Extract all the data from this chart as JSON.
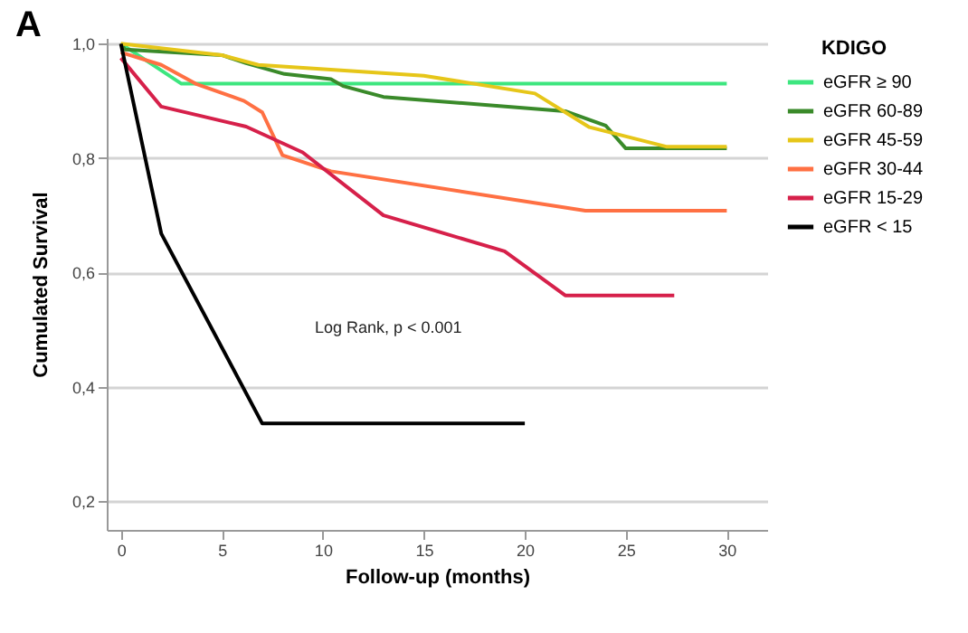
{
  "chart_data": {
    "type": "line",
    "title": "A",
    "xlabel": "Follow-up (months)",
    "ylabel": "Cumulated Survival",
    "legend_title": "KDIGO",
    "xlim": [
      -0.7,
      32
    ],
    "xticks": [
      0,
      5,
      10,
      15,
      20,
      25,
      30
    ],
    "ylim": [
      0.15,
      1.01
    ],
    "yticks": [
      {
        "value": 0.2,
        "label": "0,2"
      },
      {
        "value": 0.4,
        "label": "0,4"
      },
      {
        "value": 0.6,
        "label": "0,6"
      },
      {
        "value": 0.8,
        "label": "0,8"
      },
      {
        "value": 1.0,
        "label": "1,0"
      }
    ],
    "grid": "y",
    "legend": "top right",
    "marker": "none",
    "line_style": "solid",
    "annotations": [
      "Log Rank, p < 0.001"
    ],
    "series": [
      {
        "name": "eGFR ≥ 90",
        "color": "#3de67f",
        "x": [
          0,
          3,
          30
        ],
        "values": [
          1.0,
          0.93,
          0.93
        ]
      },
      {
        "name": "eGFR 60-89",
        "color": "#3a8a2a",
        "x": [
          0,
          0.2,
          5,
          6.2,
          8.1,
          10.4,
          11,
          13,
          22,
          24,
          25,
          30
        ],
        "values": [
          1.0,
          0.99,
          0.98,
          0.966,
          0.947,
          0.938,
          0.926,
          0.907,
          0.882,
          0.857,
          0.817,
          0.817
        ]
      },
      {
        "name": "eGFR 45-59",
        "color": "#e6c619",
        "x": [
          0,
          5,
          6.8,
          15,
          20.5,
          23.2,
          27,
          30
        ],
        "values": [
          1.0,
          0.98,
          0.963,
          0.944,
          0.913,
          0.854,
          0.82,
          0.82
        ]
      },
      {
        "name": "eGFR 30-44",
        "color": "#ff7043",
        "x": [
          0,
          2,
          3.7,
          6.1,
          7,
          8,
          10.4,
          23,
          30
        ],
        "values": [
          0.985,
          0.963,
          0.93,
          0.9,
          0.88,
          0.805,
          0.777,
          0.708,
          0.708
        ]
      },
      {
        "name": "eGFR 15-29",
        "color": "#d6204a",
        "x": [
          0,
          2,
          6.2,
          9,
          13,
          19,
          22,
          27.4
        ],
        "values": [
          0.975,
          0.89,
          0.855,
          0.81,
          0.7,
          0.637,
          0.56,
          0.56
        ]
      },
      {
        "name": "eGFR < 15",
        "color": "#000000",
        "x": [
          0,
          2,
          7,
          20
        ],
        "values": [
          1.0,
          0.668,
          0.336,
          0.336
        ]
      }
    ]
  }
}
